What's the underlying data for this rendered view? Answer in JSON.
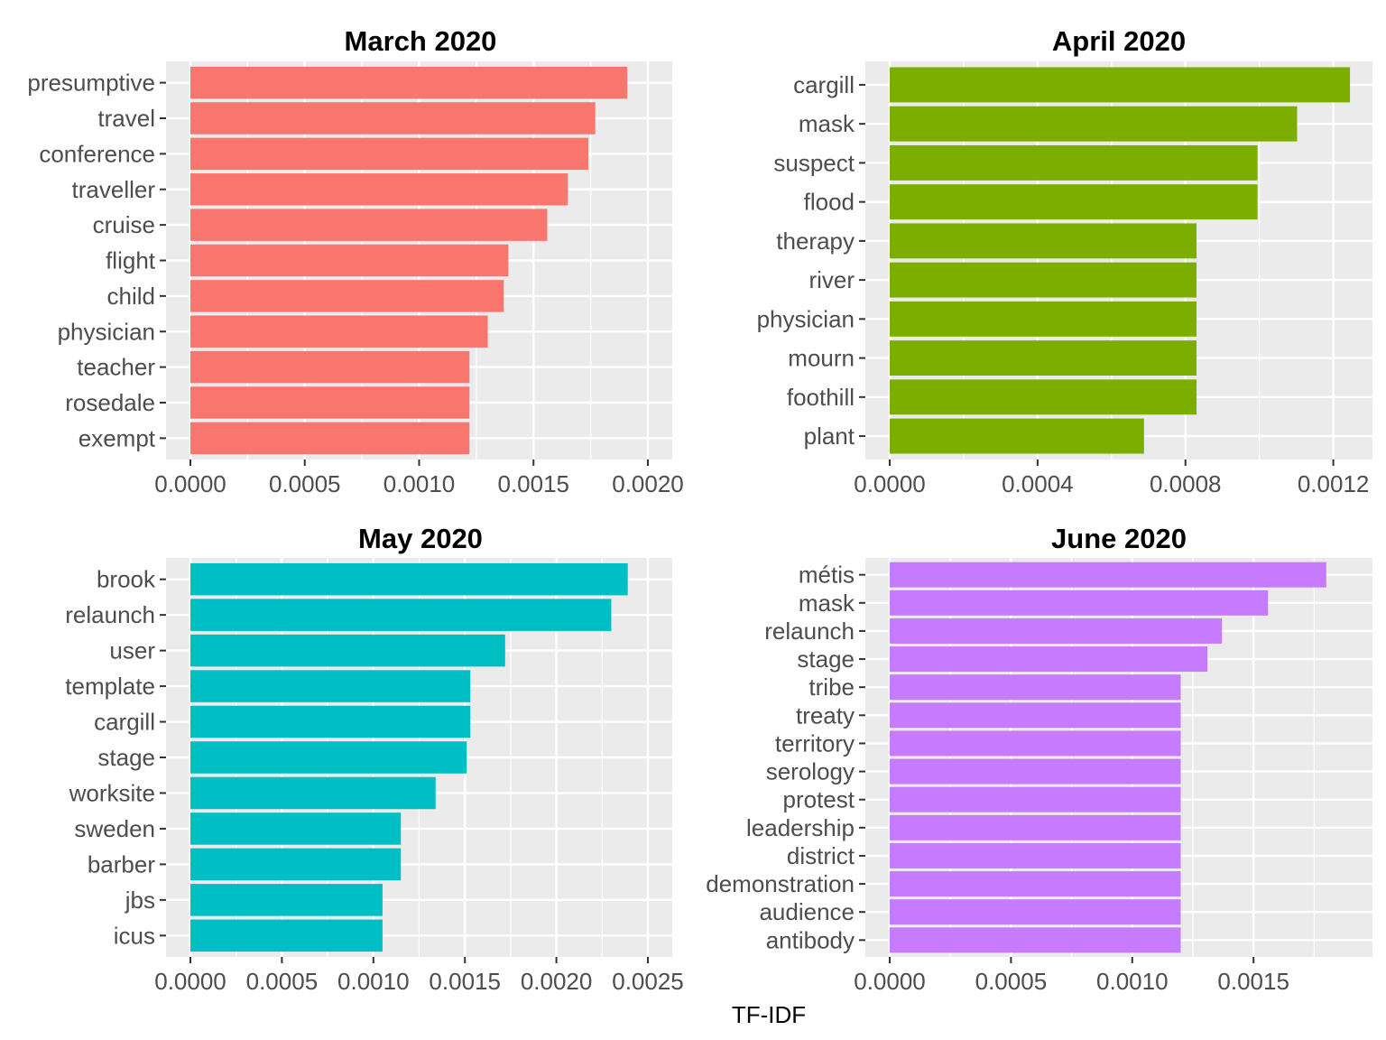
{
  "chart_data": {
    "type": "bar",
    "orientation": "horizontal",
    "x_axis_title": "TF-IDF",
    "panels": [
      {
        "title": "March 2020",
        "color": "#F8766D",
        "categories": [
          "presumptive",
          "travel",
          "conference",
          "traveller",
          "cruise",
          "flight",
          "child",
          "physician",
          "teacher",
          "rosedale",
          "exempt"
        ],
        "values": [
          0.00191,
          0.00177,
          0.00174,
          0.00165,
          0.00156,
          0.00139,
          0.00137,
          0.0013,
          0.00122,
          0.00122,
          0.00122
        ],
        "xlim": [
          0,
          0.002
        ],
        "xticks": [
          0,
          0.0005,
          0.001,
          0.0015,
          0.002
        ],
        "xtick_labels": [
          "0.0000",
          "0.0005",
          "0.0010",
          "0.0015",
          "0.0020"
        ]
      },
      {
        "title": "April 2020",
        "color": "#7CAE00",
        "categories": [
          "cargill",
          "mask",
          "suspect",
          "flood",
          "therapy",
          "river",
          "physician",
          "mourn",
          "foothill",
          "plant"
        ],
        "values": [
          0.001245,
          0.001102,
          0.000995,
          0.000995,
          0.00083,
          0.00083,
          0.00083,
          0.00083,
          0.00083,
          0.000688
        ],
        "xlim": [
          0,
          0.00124
        ],
        "xticks": [
          0,
          0.0004,
          0.0008,
          0.0012
        ],
        "xtick_labels": [
          "0.0000",
          "0.0004",
          "0.0008",
          "0.0012"
        ]
      },
      {
        "title": "May 2020",
        "color": "#00BFC4",
        "categories": [
          "brook",
          "relaunch",
          "user",
          "template",
          "cargill",
          "stage",
          "worksite",
          "sweden",
          "barber",
          "jbs",
          "icus"
        ],
        "values": [
          0.00239,
          0.0023,
          0.00172,
          0.00153,
          0.00153,
          0.00151,
          0.00134,
          0.00115,
          0.00115,
          0.00105,
          0.00105
        ],
        "xlim": [
          0,
          0.0025
        ],
        "xticks": [
          0,
          0.0005,
          0.001,
          0.0015,
          0.002,
          0.0025
        ],
        "xtick_labels": [
          "0.0000",
          "0.0005",
          "0.0010",
          "0.0015",
          "0.0020",
          "0.0025"
        ]
      },
      {
        "title": "June 2020",
        "color": "#C77CFF",
        "categories": [
          "métis",
          "mask",
          "relaunch",
          "stage",
          "tribe",
          "treaty",
          "territory",
          "serology",
          "protest",
          "leadership",
          "district",
          "demonstration",
          "audience",
          "antibody"
        ],
        "values": [
          0.0018,
          0.00156,
          0.00137,
          0.00131,
          0.0012,
          0.0012,
          0.0012,
          0.0012,
          0.0012,
          0.0012,
          0.0012,
          0.0012,
          0.0012,
          0.0012
        ],
        "xlim": [
          0,
          0.00189
        ],
        "xticks": [
          0,
          0.0005,
          0.001,
          0.0015
        ],
        "xtick_labels": [
          "0.0000",
          "0.0005",
          "0.0010",
          "0.0015"
        ]
      }
    ]
  }
}
